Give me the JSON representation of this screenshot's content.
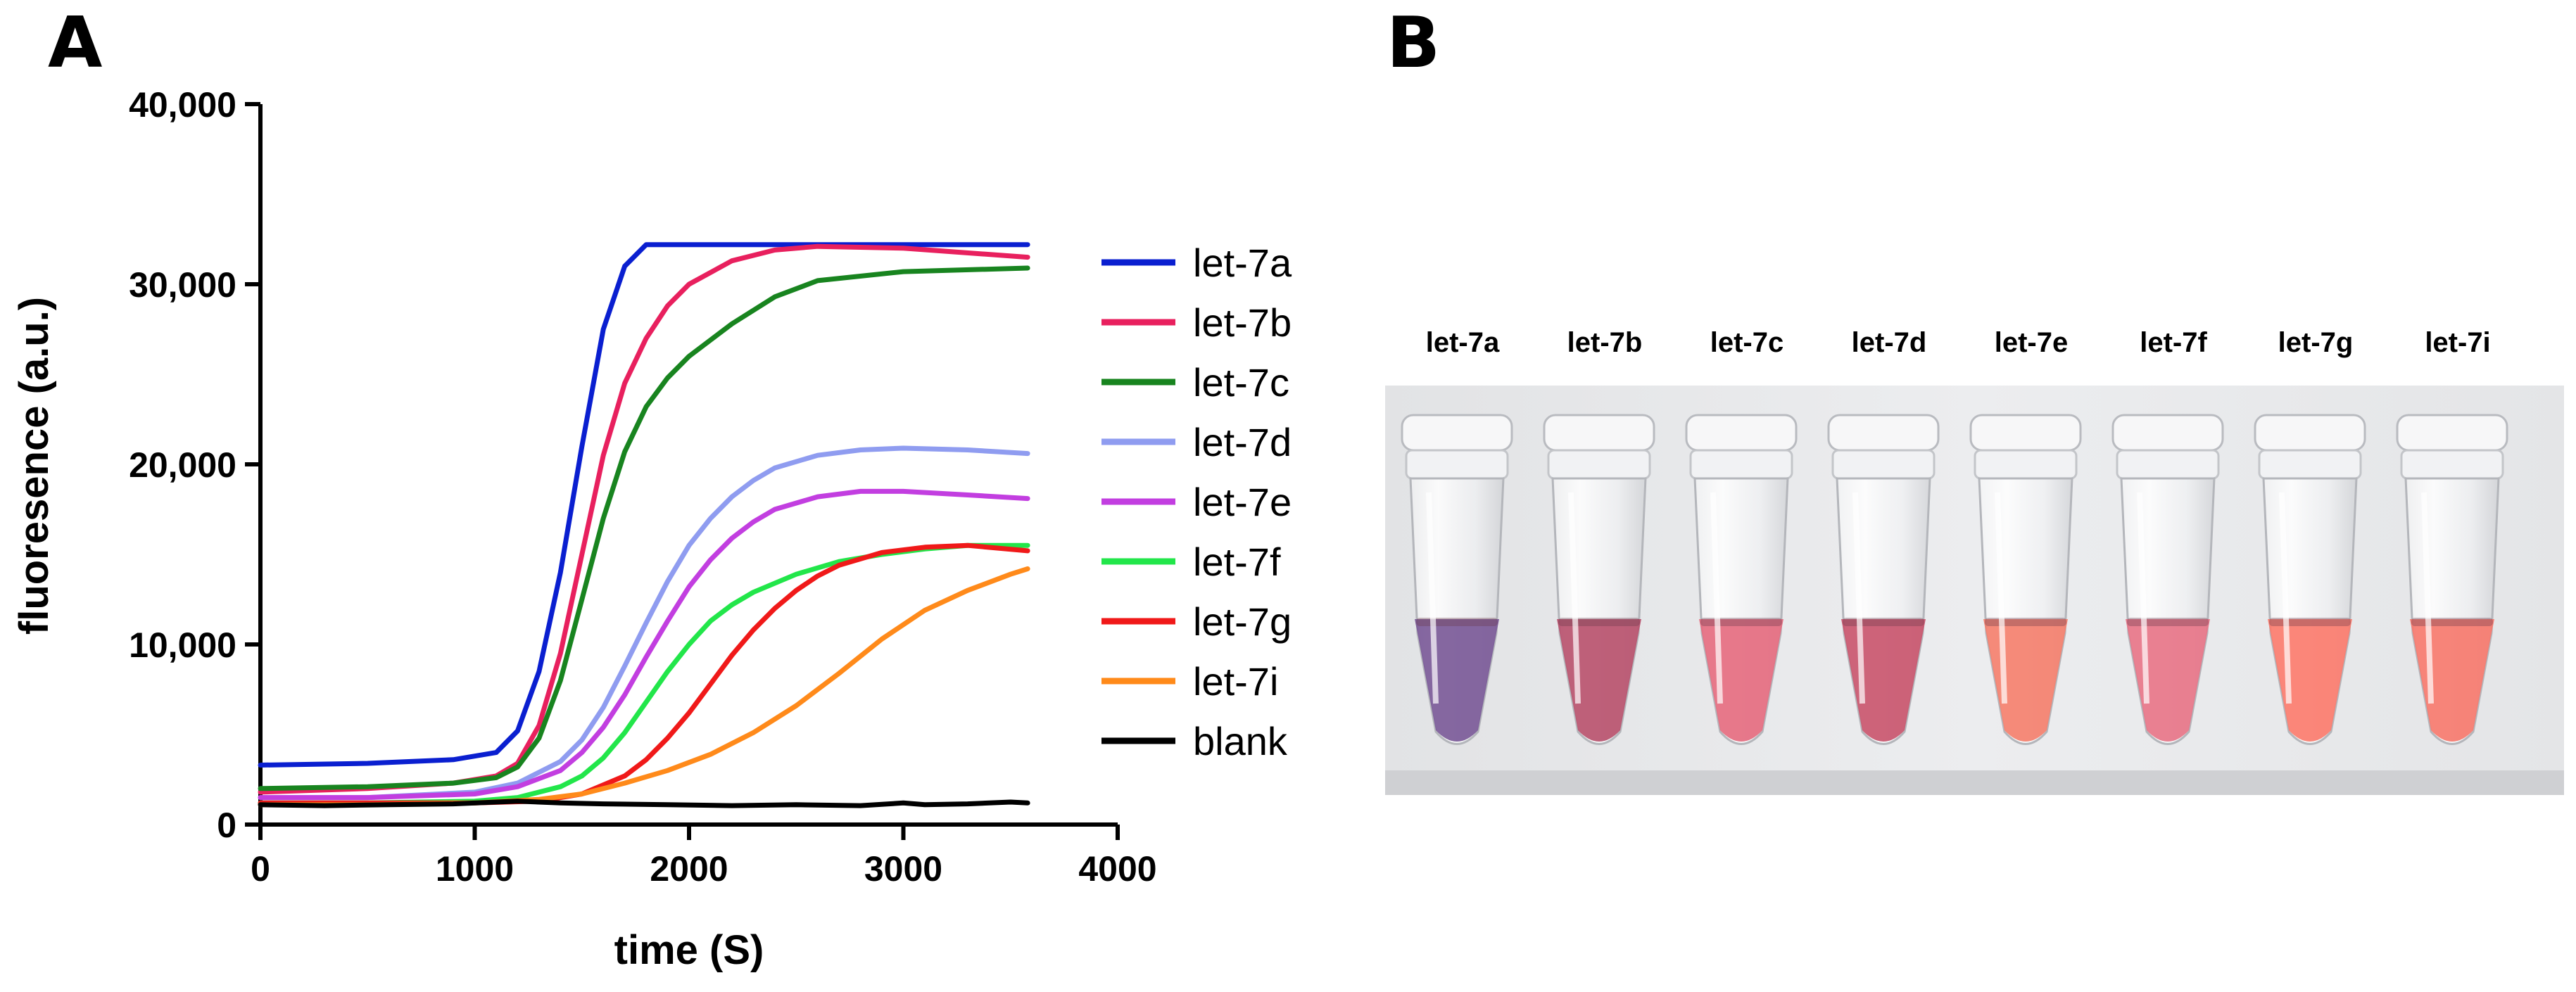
{
  "panels": {
    "a_label": "A",
    "b_label": "B"
  },
  "chart_data": {
    "type": "line",
    "title": "",
    "xlabel": "time (S)",
    "ylabel": "fluoresence  (a.u.)",
    "xlim": [
      0,
      4000
    ],
    "ylim": [
      0,
      40000
    ],
    "x_ticks": [
      0,
      1000,
      2000,
      3000,
      4000
    ],
    "x_tick_labels": [
      "0",
      "1000",
      "2000",
      "3000",
      "4000"
    ],
    "y_ticks": [
      0,
      10000,
      20000,
      30000,
      40000
    ],
    "y_tick_labels": [
      "0",
      "10,000",
      "20,000",
      "30,000",
      "40,000"
    ],
    "grid": false,
    "legend_position": "right",
    "series": [
      {
        "name": "let-7a",
        "color": "#0a1fd0",
        "x": [
          0,
          500,
          900,
          1100,
          1200,
          1300,
          1400,
          1500,
          1600,
          1700,
          1800,
          1900,
          2000,
          2500,
          3000,
          3580
        ],
        "y": [
          3300,
          3400,
          3600,
          4000,
          5200,
          8500,
          14000,
          21000,
          27500,
          31000,
          32200,
          32200,
          32200,
          32200,
          32200,
          32200
        ]
      },
      {
        "name": "let-7b",
        "color": "#e8205e",
        "x": [
          0,
          500,
          900,
          1100,
          1200,
          1300,
          1400,
          1500,
          1600,
          1700,
          1800,
          1900,
          2000,
          2200,
          2400,
          2600,
          3000,
          3580
        ],
        "y": [
          1800,
          2000,
          2300,
          2700,
          3400,
          5500,
          9500,
          15000,
          20500,
          24500,
          27000,
          28800,
          30000,
          31300,
          31900,
          32100,
          32000,
          31500
        ]
      },
      {
        "name": "let-7c",
        "color": "#18841f",
        "x": [
          0,
          500,
          900,
          1100,
          1200,
          1300,
          1400,
          1500,
          1600,
          1700,
          1800,
          1900,
          2000,
          2200,
          2400,
          2600,
          3000,
          3580
        ],
        "y": [
          2000,
          2100,
          2300,
          2600,
          3200,
          4800,
          8000,
          12500,
          17000,
          20700,
          23200,
          24800,
          26000,
          27800,
          29300,
          30200,
          30700,
          30900
        ]
      },
      {
        "name": "let-7d",
        "color": "#8f9cf0",
        "x": [
          0,
          500,
          1000,
          1200,
          1400,
          1500,
          1600,
          1700,
          1800,
          1900,
          2000,
          2100,
          2200,
          2300,
          2400,
          2600,
          2800,
          3000,
          3300,
          3580
        ],
        "y": [
          1500,
          1500,
          1800,
          2300,
          3500,
          4700,
          6500,
          8800,
          11200,
          13500,
          15500,
          17000,
          18200,
          19100,
          19800,
          20500,
          20800,
          20900,
          20800,
          20600
        ]
      },
      {
        "name": "let-7e",
        "color": "#c23ee0",
        "x": [
          0,
          500,
          1000,
          1200,
          1400,
          1500,
          1600,
          1700,
          1800,
          1900,
          2000,
          2100,
          2200,
          2300,
          2400,
          2600,
          2800,
          3000,
          3300,
          3580
        ],
        "y": [
          1500,
          1500,
          1700,
          2100,
          3000,
          4000,
          5400,
          7200,
          9300,
          11300,
          13200,
          14700,
          15900,
          16800,
          17500,
          18200,
          18500,
          18500,
          18300,
          18100
        ]
      },
      {
        "name": "let-7f",
        "color": "#22e64a",
        "x": [
          0,
          500,
          1000,
          1200,
          1400,
          1500,
          1600,
          1700,
          1800,
          1900,
          2000,
          2100,
          2200,
          2300,
          2500,
          2700,
          2900,
          3100,
          3300,
          3580
        ],
        "y": [
          1200,
          1200,
          1300,
          1500,
          2100,
          2700,
          3700,
          5100,
          6800,
          8500,
          10000,
          11300,
          12200,
          12900,
          13900,
          14600,
          15000,
          15300,
          15500,
          15500
        ]
      },
      {
        "name": "let-7g",
        "color": "#f01919",
        "x": [
          0,
          500,
          1000,
          1300,
          1500,
          1700,
          1800,
          1900,
          2000,
          2100,
          2200,
          2300,
          2400,
          2500,
          2600,
          2700,
          2900,
          3100,
          3300,
          3580
        ],
        "y": [
          1200,
          1200,
          1200,
          1300,
          1700,
          2700,
          3600,
          4800,
          6200,
          7800,
          9400,
          10800,
          12000,
          13000,
          13800,
          14400,
          15100,
          15400,
          15500,
          15200
        ]
      },
      {
        "name": "let-7i",
        "color": "#ff8a1a",
        "x": [
          0,
          500,
          1000,
          1300,
          1500,
          1700,
          1900,
          2100,
          2300,
          2500,
          2700,
          2900,
          3100,
          3300,
          3500,
          3580
        ],
        "y": [
          1100,
          1100,
          1200,
          1400,
          1700,
          2300,
          3000,
          3900,
          5100,
          6600,
          8400,
          10300,
          11900,
          13000,
          13900,
          14200
        ]
      },
      {
        "name": "blank",
        "color": "#000000",
        "x": [
          0,
          300,
          600,
          900,
          1200,
          1400,
          1600,
          1900,
          2200,
          2500,
          2800,
          3000,
          3100,
          3300,
          3500,
          3580
        ],
        "y": [
          1100,
          1050,
          1100,
          1150,
          1300,
          1200,
          1150,
          1100,
          1050,
          1100,
          1050,
          1200,
          1100,
          1150,
          1250,
          1200
        ]
      }
    ]
  },
  "photo": {
    "tube_labels": [
      "let-7a",
      "let-7b",
      "let-7c",
      "let-7d",
      "let-7e",
      "let-7f",
      "let-7g",
      "let-7i"
    ],
    "tube_colors": [
      "#7b5a98",
      "#b8526e",
      "#e56d80",
      "#c9566e",
      "#f4806e",
      "#e77588",
      "#fb7c6e",
      "#f67a6e"
    ]
  }
}
